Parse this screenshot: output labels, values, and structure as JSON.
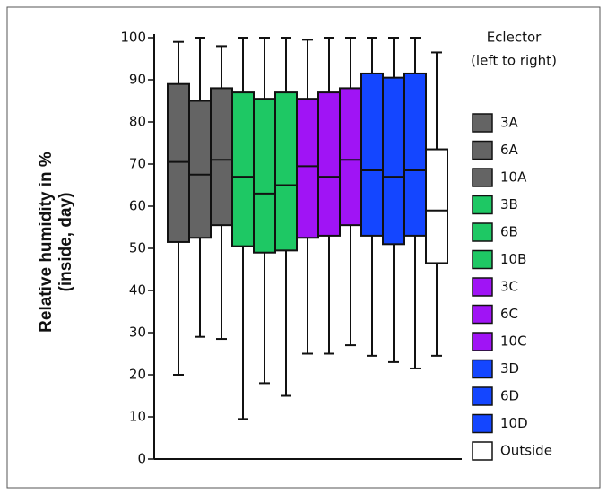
{
  "chart_data": {
    "type": "box",
    "y_label": [
      "Relative humidity in %",
      "(inside, day)"
    ],
    "legend_title": [
      "Eclector",
      "(left to right)"
    ],
    "legend": "right",
    "ylim": [
      0,
      100
    ],
    "yticks": [
      0,
      10,
      20,
      30,
      40,
      50,
      60,
      70,
      80,
      90,
      100
    ],
    "series": [
      {
        "name": "3A",
        "color": "#646464",
        "low": 20,
        "q1": 51.5,
        "median": 70.5,
        "q3": 89,
        "high": 99
      },
      {
        "name": "6A",
        "color": "#646464",
        "low": 29,
        "q1": 52.5,
        "median": 67.5,
        "q3": 85,
        "high": 100
      },
      {
        "name": "10A",
        "color": "#646464",
        "low": 28.5,
        "q1": 55.5,
        "median": 71,
        "q3": 88,
        "high": 98
      },
      {
        "name": "3B",
        "color": "#1ec864",
        "low": 9.5,
        "q1": 50.5,
        "median": 67,
        "q3": 87,
        "high": 100
      },
      {
        "name": "6B",
        "color": "#1ec864",
        "low": 18,
        "q1": 49,
        "median": 63,
        "q3": 85.5,
        "high": 100
      },
      {
        "name": "10B",
        "color": "#1ec864",
        "low": 15,
        "q1": 49.5,
        "median": 65,
        "q3": 87,
        "high": 100
      },
      {
        "name": "3C",
        "color": "#a014f5",
        "low": 25,
        "q1": 52.5,
        "median": 69.5,
        "q3": 85.5,
        "high": 99.5
      },
      {
        "name": "6C",
        "color": "#a014f5",
        "low": 25,
        "q1": 53,
        "median": 67,
        "q3": 87,
        "high": 100
      },
      {
        "name": "10C",
        "color": "#a014f5",
        "low": 27,
        "q1": 55.5,
        "median": 71,
        "q3": 88,
        "high": 100
      },
      {
        "name": "3D",
        "color": "#1446ff",
        "low": 24.5,
        "q1": 53,
        "median": 68.5,
        "q3": 91.5,
        "high": 100
      },
      {
        "name": "6D",
        "color": "#1446ff",
        "low": 23,
        "q1": 51,
        "median": 67,
        "q3": 90.5,
        "high": 100
      },
      {
        "name": "10D",
        "color": "#1446ff",
        "low": 21.5,
        "q1": 53,
        "median": 68.5,
        "q3": 91.5,
        "high": 100
      },
      {
        "name": "Outside",
        "color": "#ffffff",
        "low": 24.5,
        "q1": 46.5,
        "median": 59,
        "q3": 73.5,
        "high": 96.5
      }
    ]
  }
}
